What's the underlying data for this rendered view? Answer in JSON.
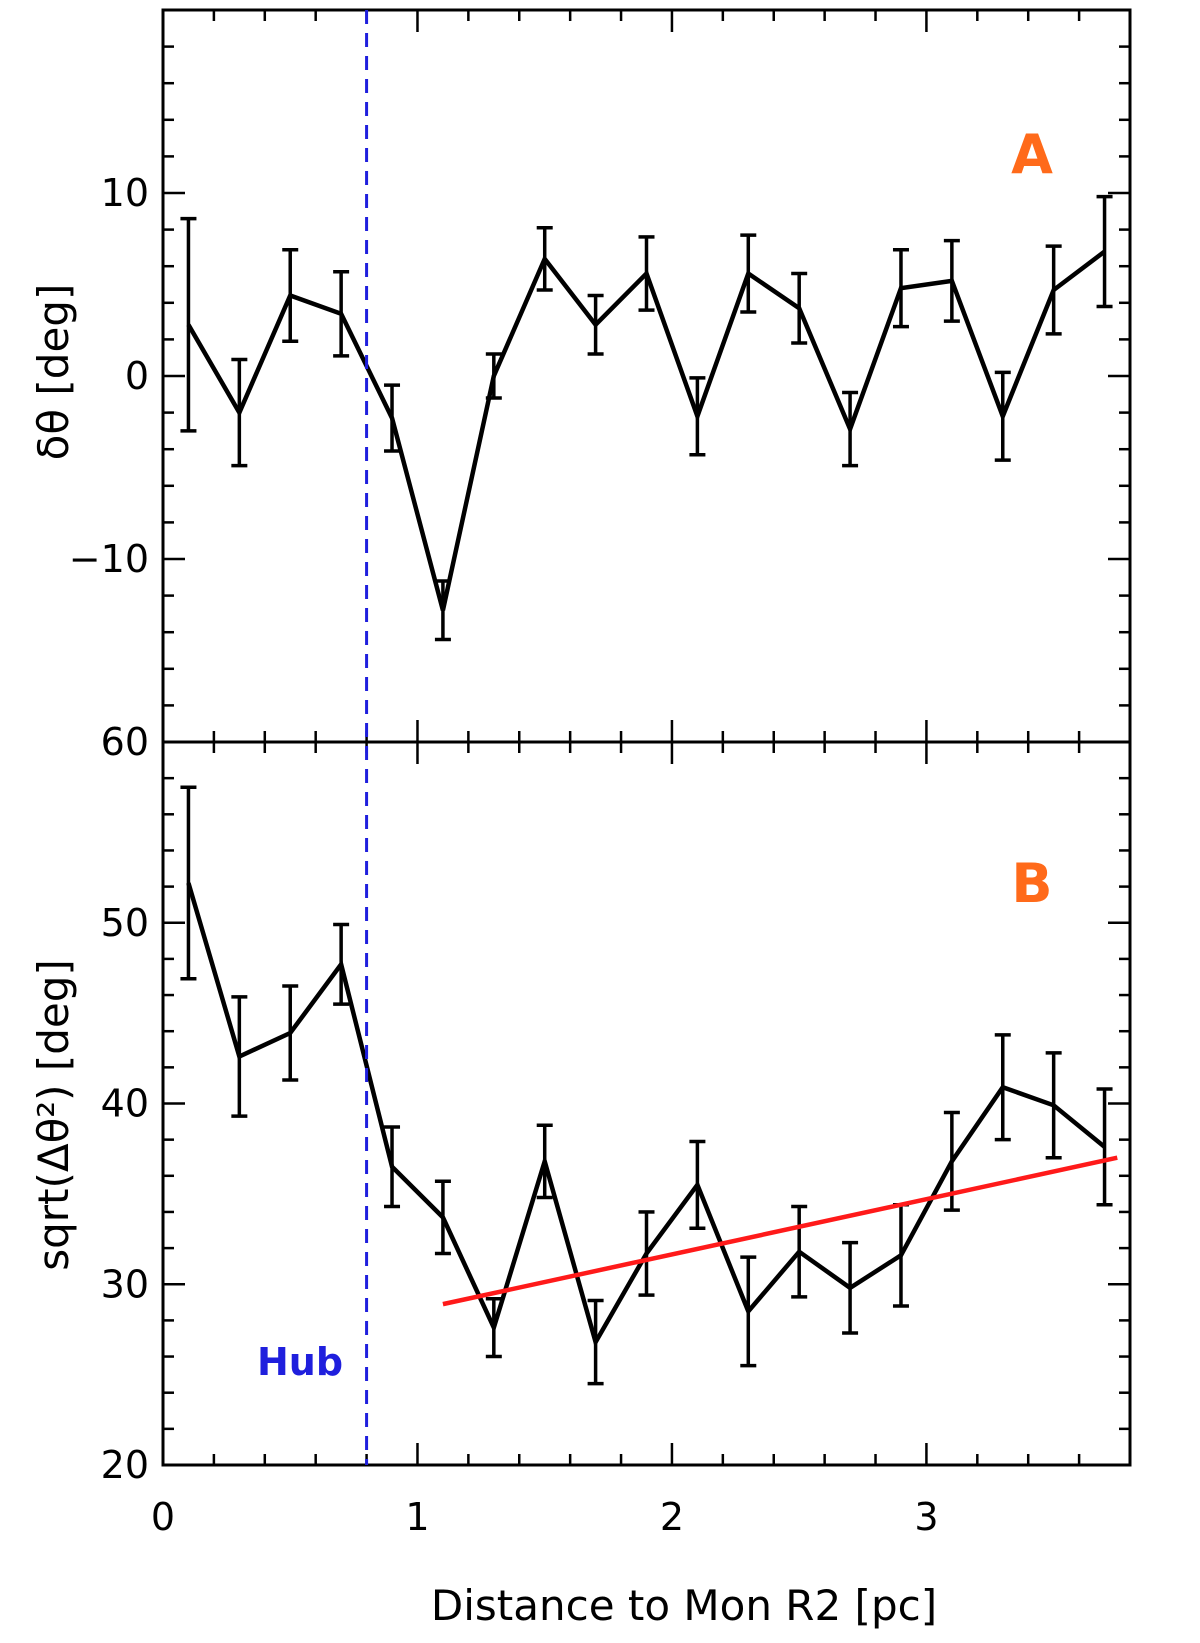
{
  "colors": {
    "series": "#000000",
    "error_bars": "#000000",
    "hub_line": "#1f1fdd",
    "hub_label": "#1f1fdd",
    "fit_line": "#ff1a1a",
    "panel_letters": "#ff6a1a"
  },
  "xaxis": {
    "label": "Distance to Mon R2 [pc]",
    "range": [
      0,
      3.8
    ],
    "ticks": [
      0,
      1,
      2,
      3
    ],
    "tick_labels": [
      "0",
      "1",
      "2",
      "3"
    ]
  },
  "hub": {
    "label": "Hub",
    "x": 0.8
  },
  "chart_data": [
    {
      "type": "line",
      "panel": "A",
      "ylabel": "δθ [deg]",
      "ylim": [
        -20,
        20
      ],
      "yticks": [
        -10,
        0,
        10
      ],
      "ytick_labels": [
        "−10",
        "0",
        "10"
      ],
      "grid": false,
      "series": [
        {
          "x": [
            0.1,
            0.3,
            0.5,
            0.7,
            0.9,
            1.1,
            1.3,
            1.5,
            1.7,
            1.9,
            2.1,
            2.3,
            2.5,
            2.7,
            2.9,
            3.1,
            3.3,
            3.5,
            3.7
          ],
          "y": [
            2.8,
            -2.0,
            4.4,
            3.4,
            -2.3,
            -12.8,
            0.0,
            6.4,
            2.8,
            5.6,
            -2.2,
            5.6,
            3.7,
            -2.9,
            4.8,
            5.2,
            -2.2,
            4.7,
            6.8
          ],
          "yerr": [
            5.8,
            2.9,
            2.5,
            2.3,
            1.8,
            1.6,
            1.2,
            1.7,
            1.6,
            2.0,
            2.1,
            2.1,
            1.9,
            2.0,
            2.1,
            2.2,
            2.4,
            2.4,
            3.0
          ]
        }
      ]
    },
    {
      "type": "line",
      "panel": "B",
      "ylabel": "sqrt(Δθ²) [deg]",
      "ylim": [
        20,
        60
      ],
      "yticks": [
        20,
        30,
        40,
        50,
        60
      ],
      "ytick_labels": [
        "20",
        "30",
        "40",
        "50",
        "60"
      ],
      "grid": false,
      "series": [
        {
          "x": [
            0.1,
            0.3,
            0.5,
            0.7,
            0.9,
            1.1,
            1.3,
            1.5,
            1.7,
            1.9,
            2.1,
            2.3,
            2.5,
            2.7,
            2.9,
            3.1,
            3.3,
            3.5,
            3.7
          ],
          "y": [
            52.2,
            42.6,
            43.9,
            47.7,
            36.5,
            33.7,
            27.6,
            36.8,
            26.8,
            31.7,
            35.5,
            28.5,
            31.8,
            29.8,
            31.6,
            36.8,
            40.9,
            39.9,
            37.6
          ],
          "yerr": [
            5.3,
            3.3,
            2.6,
            2.2,
            2.2,
            2.0,
            1.6,
            2.0,
            2.3,
            2.3,
            2.4,
            3.0,
            2.5,
            2.5,
            2.8,
            2.7,
            2.9,
            2.9,
            3.2
          ]
        }
      ],
      "fit": {
        "x": [
          1.1,
          3.75
        ],
        "y": [
          28.9,
          37.0
        ]
      }
    }
  ]
}
